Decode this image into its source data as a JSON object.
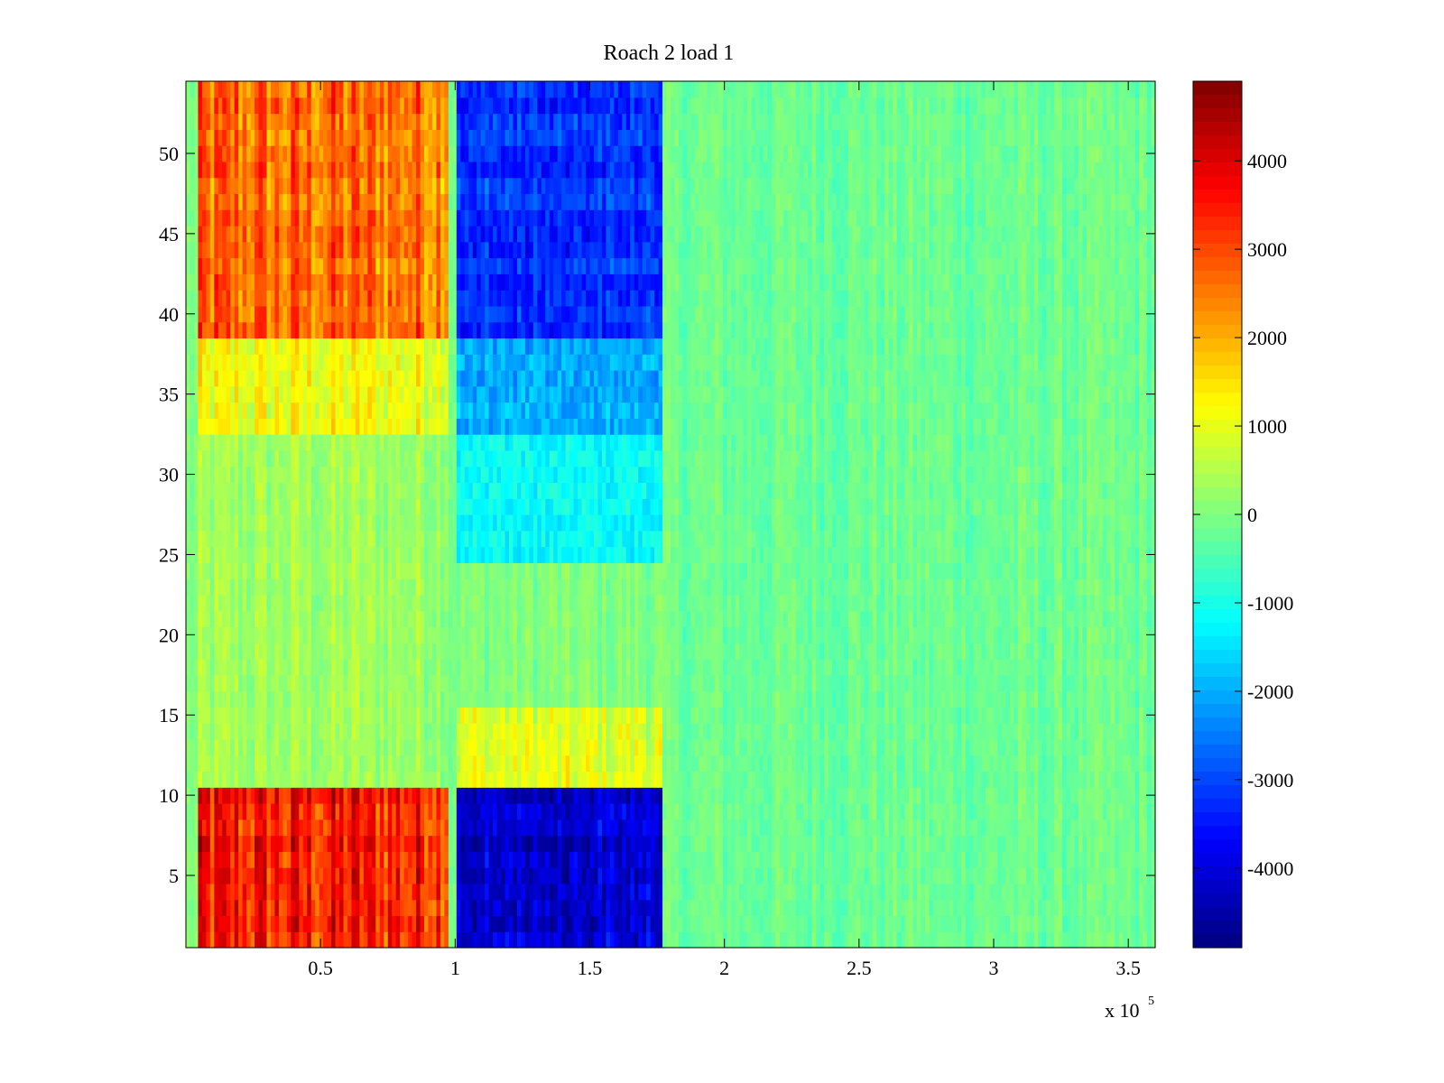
{
  "chart_data": {
    "type": "heatmap",
    "title": "Roach 2 load 1",
    "xlabel": "",
    "ylabel": "",
    "colormap": "jet",
    "x_multiplier": "x 10",
    "x_multiplier_exponent": "5",
    "xlim": [
      0,
      3.6
    ],
    "ylim": [
      0.5,
      54.5
    ],
    "x_ticks": [
      0.5,
      1,
      1.5,
      2,
      2.5,
      3,
      3.5
    ],
    "x_tick_labels": [
      "0.5",
      "1",
      "1.5",
      "2",
      "2.5",
      "3",
      "3.5"
    ],
    "y_ticks": [
      5,
      10,
      15,
      20,
      25,
      30,
      35,
      40,
      45,
      50
    ],
    "y_tick_labels": [
      "5",
      "10",
      "15",
      "20",
      "25",
      "30",
      "35",
      "40",
      "45",
      "50"
    ],
    "clim": [
      -4900,
      4900
    ],
    "colorbar_ticks": [
      4000,
      3000,
      2000,
      1000,
      0,
      -1000,
      -2000,
      -3000,
      -4000
    ],
    "colorbar_tick_labels": [
      "4000",
      "3000",
      "2000",
      "1000",
      "0",
      "-1000",
      "-2000",
      "-3000",
      "-4000"
    ],
    "regions": [
      {
        "x_range": [
          0.05,
          0.98
        ],
        "y_range": [
          38.5,
          54.5
        ],
        "value": 2600
      },
      {
        "x_range": [
          0.05,
          0.98
        ],
        "y_range": [
          32.5,
          38.5
        ],
        "value": 1100
      },
      {
        "x_range": [
          0.05,
          0.98
        ],
        "y_range": [
          10.5,
          32.5
        ],
        "value": 300
      },
      {
        "x_range": [
          0.05,
          0.98
        ],
        "y_range": [
          0.5,
          10.5
        ],
        "value": 3400
      },
      {
        "x_range": [
          1.0,
          1.77
        ],
        "y_range": [
          38.5,
          54.5
        ],
        "value": -3200
      },
      {
        "x_range": [
          1.0,
          1.77
        ],
        "y_range": [
          32.5,
          38.5
        ],
        "value": -2000
      },
      {
        "x_range": [
          1.0,
          1.77
        ],
        "y_range": [
          24.5,
          32.5
        ],
        "value": -1200
      },
      {
        "x_range": [
          1.0,
          1.77
        ],
        "y_range": [
          10.5,
          15.5
        ],
        "value": 900
      },
      {
        "x_range": [
          1.0,
          1.77
        ],
        "y_range": [
          0.5,
          10.5
        ],
        "value": -4100
      },
      {
        "x_range": [
          1.77,
          3.6
        ],
        "y_range": [
          0.5,
          54.5
        ],
        "value": -200
      }
    ]
  }
}
